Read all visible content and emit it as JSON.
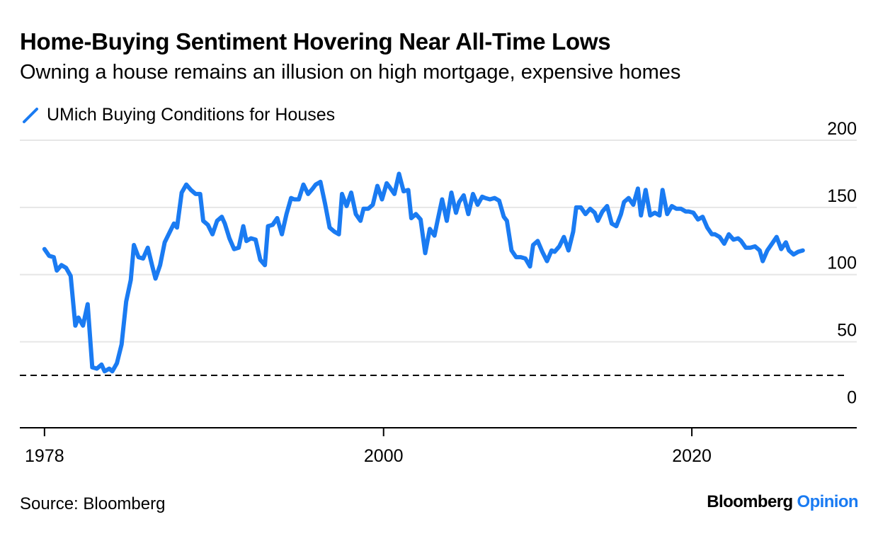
{
  "header": {
    "title": "Home-Buying Sentiment Hovering Near All-Time Lows",
    "subtitle": "Owning a house remains an illusion on high mortgage, expensive homes"
  },
  "legend": {
    "label": "UMich Buying Conditions for Houses",
    "icon": "diagonal-line-icon"
  },
  "footer": {
    "source": "Source: Bloomberg",
    "brand_primary": "Bloomberg",
    "brand_secondary": "Opinion"
  },
  "colors": {
    "series": "#1a7bf2",
    "grid": "#e6e6e6",
    "axis": "#000000",
    "reference_line": "#000000"
  },
  "chart_data": {
    "type": "line",
    "title": "Home-Buying Sentiment Hovering Near All-Time Lows",
    "subtitle": "Owning a house remains an illusion on high mortgage, expensive homes",
    "xlabel": "",
    "ylabel": "",
    "xlim": [
      1976.4,
      2030.7
    ],
    "ylim": [
      -14,
      200
    ],
    "y_ticks": [
      0,
      50,
      100,
      150,
      200
    ],
    "x_ticks": [
      1978,
      2000,
      2020
    ],
    "x_tick_labels": [
      "1978",
      "2000",
      "2020"
    ],
    "y_axis_side": "right",
    "grid": true,
    "legend_position": "top-left",
    "reference_line": {
      "y": 25,
      "style": "dashed"
    },
    "series": [
      {
        "name": "UMich Buying Conditions for Houses",
        "color": "#1a7bf2",
        "points": [
          [
            1978.0,
            119
          ],
          [
            1978.3,
            114
          ],
          [
            1978.6,
            113
          ],
          [
            1978.8,
            103
          ],
          [
            1979.1,
            107
          ],
          [
            1979.4,
            105
          ],
          [
            1979.7,
            99
          ],
          [
            1980.0,
            62
          ],
          [
            1980.2,
            68
          ],
          [
            1980.5,
            62
          ],
          [
            1980.8,
            78
          ],
          [
            1981.1,
            31
          ],
          [
            1981.4,
            30
          ],
          [
            1981.7,
            33
          ],
          [
            1981.9,
            28
          ],
          [
            1982.2,
            30
          ],
          [
            1982.4,
            28
          ],
          [
            1982.7,
            34
          ],
          [
            1983.0,
            48
          ],
          [
            1983.3,
            80
          ],
          [
            1983.6,
            96
          ],
          [
            1983.8,
            122
          ],
          [
            1984.1,
            113
          ],
          [
            1984.4,
            112
          ],
          [
            1984.7,
            120
          ],
          [
            1985.0,
            106
          ],
          [
            1985.2,
            97
          ],
          [
            1985.5,
            107
          ],
          [
            1985.8,
            124
          ],
          [
            1986.1,
            131
          ],
          [
            1986.4,
            138
          ],
          [
            1986.6,
            135
          ],
          [
            1986.9,
            161
          ],
          [
            1987.2,
            167
          ],
          [
            1987.5,
            163
          ],
          [
            1987.8,
            160
          ],
          [
            1988.1,
            160
          ],
          [
            1988.3,
            140
          ],
          [
            1988.6,
            137
          ],
          [
            1988.9,
            130
          ],
          [
            1989.2,
            140
          ],
          [
            1989.5,
            143
          ],
          [
            1989.7,
            138
          ],
          [
            1990.0,
            127
          ],
          [
            1990.3,
            119
          ],
          [
            1990.6,
            120
          ],
          [
            1990.9,
            136
          ],
          [
            1991.1,
            125
          ],
          [
            1991.4,
            127
          ],
          [
            1991.7,
            126
          ],
          [
            1992.0,
            111
          ],
          [
            1992.3,
            107
          ],
          [
            1992.5,
            136
          ],
          [
            1992.8,
            137
          ],
          [
            1993.1,
            142
          ],
          [
            1993.4,
            130
          ],
          [
            1993.7,
            145
          ],
          [
            1994.0,
            157
          ],
          [
            1994.2,
            156
          ],
          [
            1994.5,
            156
          ],
          [
            1994.8,
            167
          ],
          [
            1995.1,
            160
          ],
          [
            1995.4,
            164
          ],
          [
            1995.6,
            167
          ],
          [
            1995.9,
            169
          ],
          [
            1996.2,
            153
          ],
          [
            1996.5,
            135
          ],
          [
            1996.8,
            132
          ],
          [
            1997.1,
            130
          ],
          [
            1997.3,
            160
          ],
          [
            1997.6,
            151
          ],
          [
            1997.9,
            161
          ],
          [
            1998.2,
            145
          ],
          [
            1998.5,
            140
          ],
          [
            1998.7,
            149
          ],
          [
            1999.0,
            149
          ],
          [
            1999.3,
            152
          ],
          [
            1999.6,
            166
          ],
          [
            1999.9,
            156
          ],
          [
            2000.2,
            168
          ],
          [
            2000.4,
            165
          ],
          [
            2000.7,
            160
          ],
          [
            2001.0,
            175
          ],
          [
            2001.3,
            162
          ],
          [
            2001.6,
            163
          ],
          [
            2001.8,
            142
          ],
          [
            2002.1,
            145
          ],
          [
            2002.4,
            141
          ],
          [
            2002.7,
            116
          ],
          [
            2003.0,
            134
          ],
          [
            2003.3,
            129
          ],
          [
            2003.5,
            140
          ],
          [
            2003.8,
            156
          ],
          [
            2004.1,
            140
          ],
          [
            2004.4,
            161
          ],
          [
            2004.7,
            146
          ],
          [
            2004.9,
            154
          ],
          [
            2005.2,
            159
          ],
          [
            2005.5,
            145
          ],
          [
            2005.8,
            160
          ],
          [
            2006.1,
            152
          ],
          [
            2006.4,
            158
          ],
          [
            2006.6,
            157
          ],
          [
            2006.9,
            156
          ],
          [
            2007.2,
            157
          ],
          [
            2007.5,
            155
          ],
          [
            2007.8,
            143
          ],
          [
            2008.0,
            140
          ],
          [
            2008.3,
            118
          ],
          [
            2008.6,
            113
          ],
          [
            2008.9,
            113
          ],
          [
            2009.2,
            112
          ],
          [
            2009.5,
            106
          ],
          [
            2009.7,
            122
          ],
          [
            2010.0,
            125
          ],
          [
            2010.3,
            117
          ],
          [
            2010.6,
            110
          ],
          [
            2010.9,
            118
          ],
          [
            2011.1,
            117
          ],
          [
            2011.4,
            121
          ],
          [
            2011.7,
            128
          ],
          [
            2012.0,
            118
          ],
          [
            2012.3,
            132
          ],
          [
            2012.5,
            150
          ],
          [
            2012.8,
            150
          ],
          [
            2013.1,
            145
          ],
          [
            2013.4,
            149
          ],
          [
            2013.7,
            146
          ],
          [
            2013.9,
            140
          ],
          [
            2014.2,
            147
          ],
          [
            2014.5,
            151
          ],
          [
            2014.8,
            138
          ],
          [
            2015.1,
            136
          ],
          [
            2015.4,
            145
          ],
          [
            2015.6,
            154
          ],
          [
            2015.9,
            157
          ],
          [
            2016.2,
            152
          ],
          [
            2016.5,
            164
          ],
          [
            2016.7,
            144
          ],
          [
            2017.0,
            163
          ],
          [
            2017.3,
            144
          ],
          [
            2017.6,
            146
          ],
          [
            2017.9,
            144
          ],
          [
            2018.1,
            163
          ],
          [
            2018.4,
            145
          ],
          [
            2018.7,
            151
          ],
          [
            2019.0,
            149
          ],
          [
            2019.3,
            149
          ],
          [
            2019.6,
            147
          ],
          [
            2019.8,
            147
          ],
          [
            2020.1,
            146
          ],
          [
            2020.4,
            141
          ],
          [
            2020.7,
            143
          ],
          [
            2021.0,
            135
          ],
          [
            2021.3,
            130
          ],
          [
            2021.5,
            130
          ],
          [
            2021.8,
            128
          ],
          [
            2022.1,
            123
          ],
          [
            2022.4,
            130
          ],
          [
            2022.7,
            126
          ],
          [
            2023.0,
            127
          ],
          [
            2023.2,
            125
          ],
          [
            2023.5,
            120
          ],
          [
            2023.8,
            120
          ],
          [
            2024.1,
            121
          ],
          [
            2024.4,
            118
          ],
          [
            2024.6,
            110
          ],
          [
            2024.9,
            118
          ],
          [
            2025.2,
            123
          ],
          [
            2025.5,
            128
          ],
          [
            2025.8,
            119
          ],
          [
            2026.1,
            124
          ],
          [
            2026.3,
            118
          ],
          [
            2026.6,
            115
          ],
          [
            2026.9,
            117
          ],
          [
            2027.2,
            118
          ]
        ]
      }
    ]
  }
}
